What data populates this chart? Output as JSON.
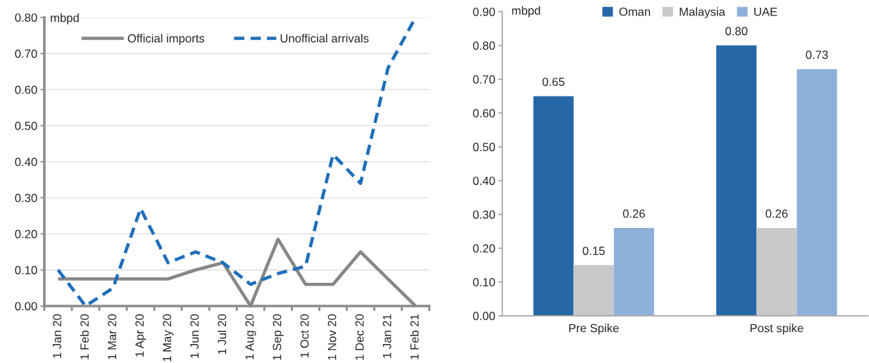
{
  "chart_data": [
    {
      "type": "line",
      "ylabel": "mbpd",
      "categories": [
        "1 Jan 20",
        "1 Feb 20",
        "1 Mar 20",
        "1 Apr 20",
        "1 May 20",
        "1 Jun 20",
        "1 Jul 20",
        "1 Aug 20",
        "1 Sep 20",
        "1 Oct 20",
        "1 Nov 20",
        "1 Dec 20",
        "1 Jan 21",
        "1 Feb 21"
      ],
      "series": [
        {
          "name": "Official imports",
          "color": "#878787",
          "line_style": "solid",
          "values": [
            0.075,
            0.075,
            0.075,
            0.075,
            0.075,
            0.1,
            0.12,
            0,
            0.185,
            0.06,
            0.06,
            0.15,
            0.075,
            0
          ]
        },
        {
          "name": "Unofficial arrivals",
          "color": "#1f6fba",
          "line_style": "dashed",
          "values": [
            0.1,
            0,
            0.05,
            0.27,
            0.12,
            0.15,
            0.12,
            0.06,
            0.09,
            0.11,
            0.42,
            0.34,
            0.66,
            0.8
          ]
        }
      ],
      "ylim": [
        0,
        0.8
      ],
      "yticks": [
        {
          "value": 0,
          "label": "0.00"
        },
        {
          "value": 0.1,
          "label": "0.10"
        },
        {
          "value": 0.2,
          "label": "0.20"
        },
        {
          "value": 0.3,
          "label": "0.30"
        },
        {
          "value": 0.4,
          "label": "0.40"
        },
        {
          "value": 0.5,
          "label": "0.50"
        },
        {
          "value": 0.6,
          "label": "0.60"
        },
        {
          "value": 0.7,
          "label": "0.70"
        },
        {
          "value": 0.8,
          "label": "0.80"
        }
      ],
      "grid": "y",
      "legend": "top"
    },
    {
      "type": "bar",
      "ylabel": "mbpd",
      "categories": [
        "Pre Spike",
        "Post spike"
      ],
      "series": [
        {
          "name": "Oman",
          "color": "#2667a8",
          "values": [
            0.65,
            0.8
          ],
          "value_labels": [
            "0.65",
            "0.80"
          ]
        },
        {
          "name": "Malaysia",
          "color": "#c8c9cb",
          "values": [
            0.15,
            0.26
          ],
          "value_labels": [
            "0.15",
            "0.26"
          ]
        },
        {
          "name": "UAE",
          "color": "#8eb0da",
          "values": [
            0.26,
            0.73
          ],
          "value_labels": [
            "0.26",
            "0.73"
          ]
        }
      ],
      "ylim": [
        0,
        0.9
      ],
      "yticks": [
        {
          "value": 0,
          "label": "0.00"
        },
        {
          "value": 0.1,
          "label": "0.10"
        },
        {
          "value": 0.2,
          "label": "0.20"
        },
        {
          "value": 0.3,
          "label": "0.30"
        },
        {
          "value": 0.4,
          "label": "0.40"
        },
        {
          "value": 0.5,
          "label": "0.50"
        },
        {
          "value": 0.6,
          "label": "0.60"
        },
        {
          "value": 0.7,
          "label": "0.70"
        },
        {
          "value": 0.8,
          "label": "0.80"
        },
        {
          "value": 0.9,
          "label": "0.90"
        }
      ],
      "legend": "top"
    }
  ]
}
